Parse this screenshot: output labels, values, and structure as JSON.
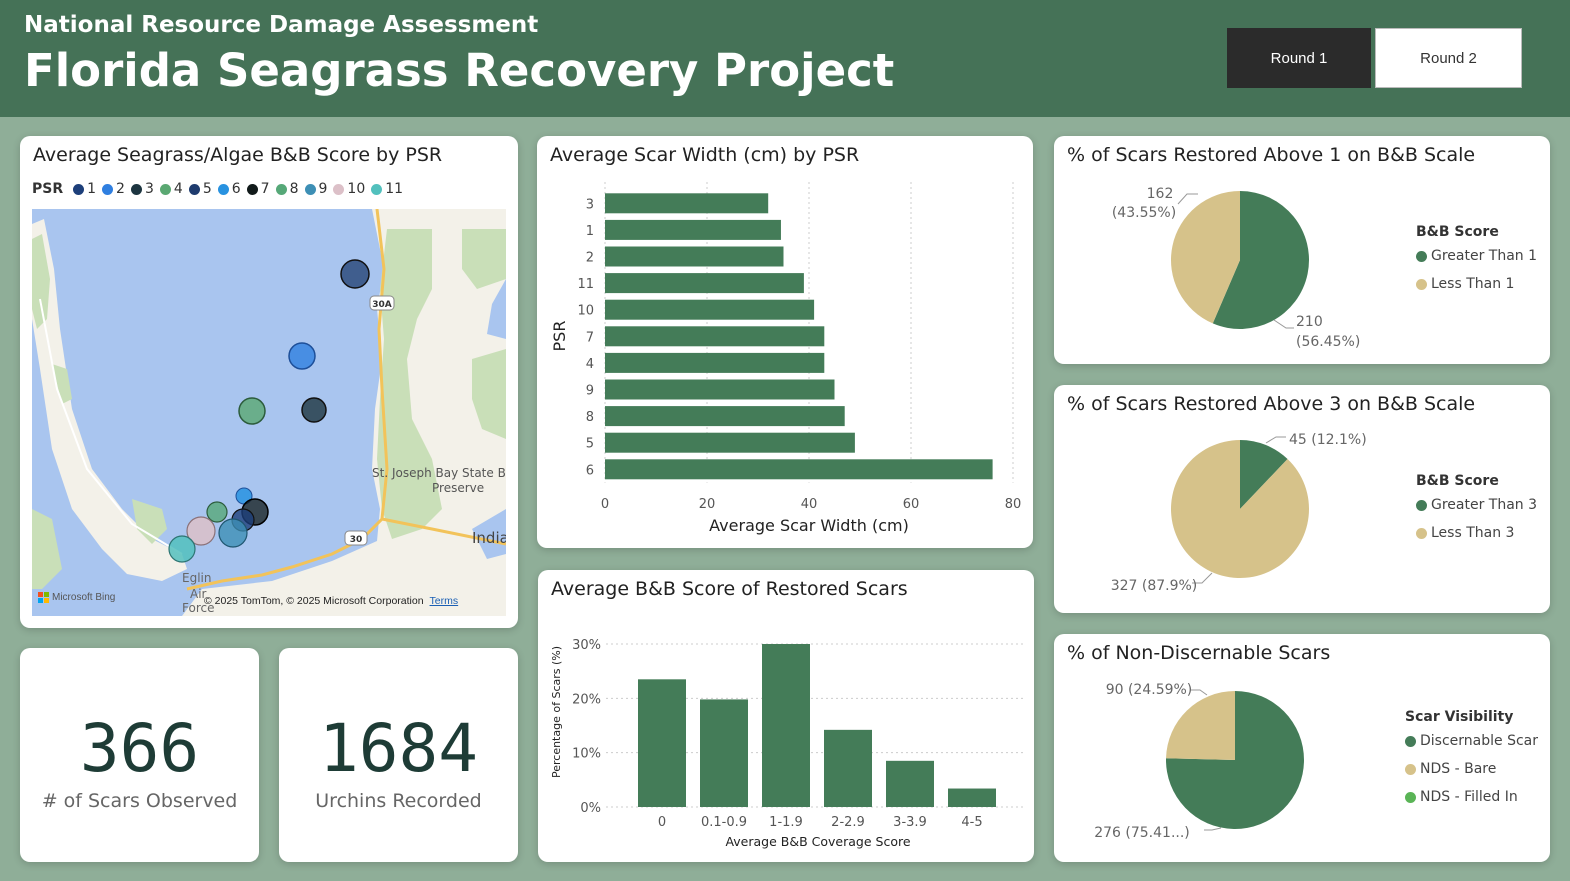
{
  "header": {
    "subtitle": "National Resource Damage Assessment",
    "title": "Florida Seagrass Recovery Project",
    "round_buttons": [
      {
        "label": "Round 1",
        "selected": true
      },
      {
        "label": "Round 2",
        "selected": false
      }
    ]
  },
  "colors": {
    "header_bg": "#457257",
    "page_bg": "#8fae98",
    "bar_green": "#447c58",
    "tan": "#d6c28a",
    "kpi_text": "#1e3c36",
    "nds_filled": "#5ab456"
  },
  "map_card": {
    "title": "Average Seagrass/Algae B&B Score by PSR",
    "legend_title": "PSR",
    "legend": [
      {
        "label": "1",
        "color": "#1d3f7a"
      },
      {
        "label": "2",
        "color": "#2f7fe0"
      },
      {
        "label": "3",
        "color": "#1d3540"
      },
      {
        "label": "4",
        "color": "#5aa872"
      },
      {
        "label": "5",
        "color": "#1e3b6e"
      },
      {
        "label": "6",
        "color": "#2892e0"
      },
      {
        "label": "7",
        "color": "#111a1a"
      },
      {
        "label": "8",
        "color": "#56a878"
      },
      {
        "label": "9",
        "color": "#3d8fb5"
      },
      {
        "label": "10",
        "color": "#dcc0c8"
      },
      {
        "label": "11",
        "color": "#52c0bd"
      }
    ],
    "place_labels": {
      "road_30a": "30A",
      "road_30": "30",
      "park_line1": "St. Joseph Bay State Bu",
      "park_line2": "Preserve",
      "town": "India",
      "eglin_line1": "Eglin",
      "eglin_line2": "Air",
      "eglin_line3": "Force"
    },
    "attribution": "© 2025 TomTom, © 2025 Microsoft Corporation",
    "terms": "Terms",
    "bing": "Microsoft Bing"
  },
  "kpis": [
    {
      "value": "366",
      "label": "# of Scars Observed"
    },
    {
      "value": "1684",
      "label": "Urchins Recorded"
    }
  ],
  "scar_width_chart": {
    "title": "Average Scar Width (cm) by PSR",
    "chart_data": {
      "type": "bar",
      "orientation": "horizontal",
      "categories": [
        "3",
        "1",
        "2",
        "11",
        "10",
        "7",
        "4",
        "9",
        "8",
        "5",
        "6"
      ],
      "values": [
        32,
        34.5,
        35,
        39,
        41,
        43,
        43,
        45,
        47,
        49,
        76
      ],
      "xlabel": "Average Scar Width (cm)",
      "ylabel": "PSR",
      "xlim": [
        0,
        80
      ],
      "xticks": [
        "0",
        "20",
        "40",
        "60",
        "80"
      ],
      "grid": "vertical-dotted"
    }
  },
  "bb_score_chart": {
    "title": "Average B&B Score of Restored Scars",
    "chart_data": {
      "type": "bar",
      "categories": [
        "0",
        "0.1-0.9",
        "1-1.9",
        "2-2.9",
        "3-3.9",
        "4-5"
      ],
      "values": [
        23.5,
        19.8,
        30,
        14.2,
        8.5,
        3.4
      ],
      "xlabel": "Average B&B Coverage Score",
      "ylabel": "Percentage of Scars (%)",
      "ylim": [
        0,
        30
      ],
      "yticks": [
        "0%",
        "10%",
        "20%",
        "30%"
      ],
      "grid": "horizontal-dotted"
    }
  },
  "pie_charts": [
    {
      "title": "% of Scars Restored Above 1 on B&B Scale",
      "legend_title": "B&B Score",
      "chart_data": {
        "type": "pie",
        "slices": [
          {
            "name": "Greater Than 1",
            "value": 210,
            "label_line1": "210",
            "label_line2": "(56.45%)",
            "color": "#447c58"
          },
          {
            "name": "Less Than 1",
            "value": 162,
            "label_line1": "162",
            "label_line2": "(43.55%)",
            "color": "#d6c28a"
          }
        ]
      }
    },
    {
      "title": "% of Scars Restored Above 3 on B&B Scale",
      "legend_title": "B&B Score",
      "chart_data": {
        "type": "pie",
        "slices": [
          {
            "name": "Greater Than 3",
            "value": 45,
            "label_line1": "45 (12.1%)",
            "color": "#447c58"
          },
          {
            "name": "Less Than 3",
            "value": 327,
            "label_line1": "327 (87.9%)",
            "color": "#d6c28a"
          }
        ]
      }
    },
    {
      "title": "% of Non-Discernable Scars",
      "legend_title": "Scar Visibility",
      "chart_data": {
        "type": "pie",
        "slices": [
          {
            "name": "Discernable Scar",
            "value": 276,
            "label_line1": "276 (75.41...)",
            "color": "#447c58"
          },
          {
            "name": "NDS - Bare",
            "value": 90,
            "label_line1": "90 (24.59%)",
            "color": "#d6c28a"
          },
          {
            "name": "NDS - Filled In",
            "value": 0,
            "color": "#5ab456"
          }
        ]
      }
    }
  ]
}
